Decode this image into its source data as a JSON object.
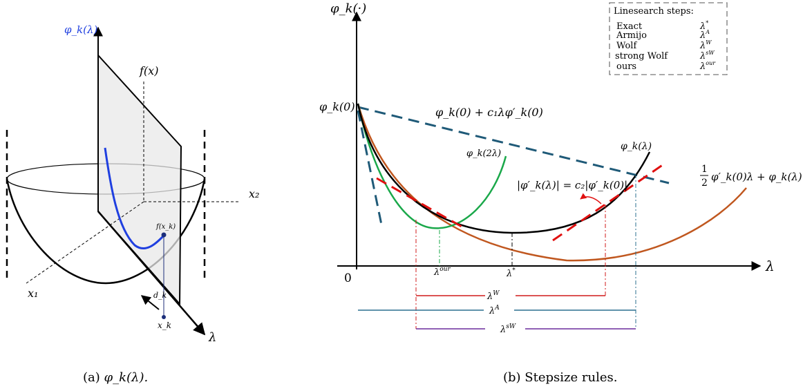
{
  "panel_a": {
    "axis_phi": "φ_k(λ)",
    "axis_f": "f(x)",
    "axis_x1": "x₁",
    "axis_x2": "x₂",
    "axis_lambda": "λ",
    "point_f": "f(x_k)",
    "point_d": "d_k",
    "point_x": "x_k",
    "caption_prefix": "(a) ",
    "caption_math": "φ_k(λ).",
    "colors": {
      "curve": "#1f3fe0",
      "point": "#1c2e7a",
      "plane": "#e8e8e8"
    }
  },
  "panel_b": {
    "y_axis_label": "φ_k(·)",
    "x_axis_label": "λ",
    "origin": "0",
    "phi0": "φ_k(0)",
    "armijo_line": "φ_k(0) + c₁λφ′_k(0)",
    "phi2": "φ_k(2λ)",
    "phi_lambda": "φ_k(λ)",
    "curv_cond": "|φ′_k(λ)| = c₂|φ′_k(0)|",
    "ours_curve_num": "1",
    "ours_curve_den": "2",
    "ours_curve_rest": "φ′_k(0)λ + φ_k(λ)",
    "lambda_our": "λ",
    "lambda_our_sup": "our",
    "lambda_star": "λ",
    "lambda_star_sup": "*",
    "lambda_W": "λ",
    "lambda_W_sup": "W",
    "lambda_A": "λ",
    "lambda_A_sup": "A",
    "lambda_sW": "λ",
    "lambda_sW_sup": "sW",
    "legend": {
      "title": "Linesearch steps:",
      "rows": [
        {
          "name": "Exact",
          "sym": "λ",
          "sup": "*"
        },
        {
          "name": "Armijo",
          "sym": "λ",
          "sup": "A"
        },
        {
          "name": "Wolf",
          "sym": "λ",
          "sup": "W"
        },
        {
          "name": "strong Wolf",
          "sym": "λ",
          "sup": "sW"
        },
        {
          "name": "ours",
          "sym": "λ",
          "sup": "our"
        }
      ]
    },
    "caption": "(b) Stepsize rules.",
    "colors": {
      "phi": "#000000",
      "phi2": "#1aa84a",
      "ours": "#c0571f",
      "armijo_dash": "#1f5a78",
      "tangent": "#e01010",
      "wolfe_bar": "#d11a1a",
      "armijo_bar": "#2a6f8f",
      "sw_bar": "#6a2c9c"
    }
  }
}
